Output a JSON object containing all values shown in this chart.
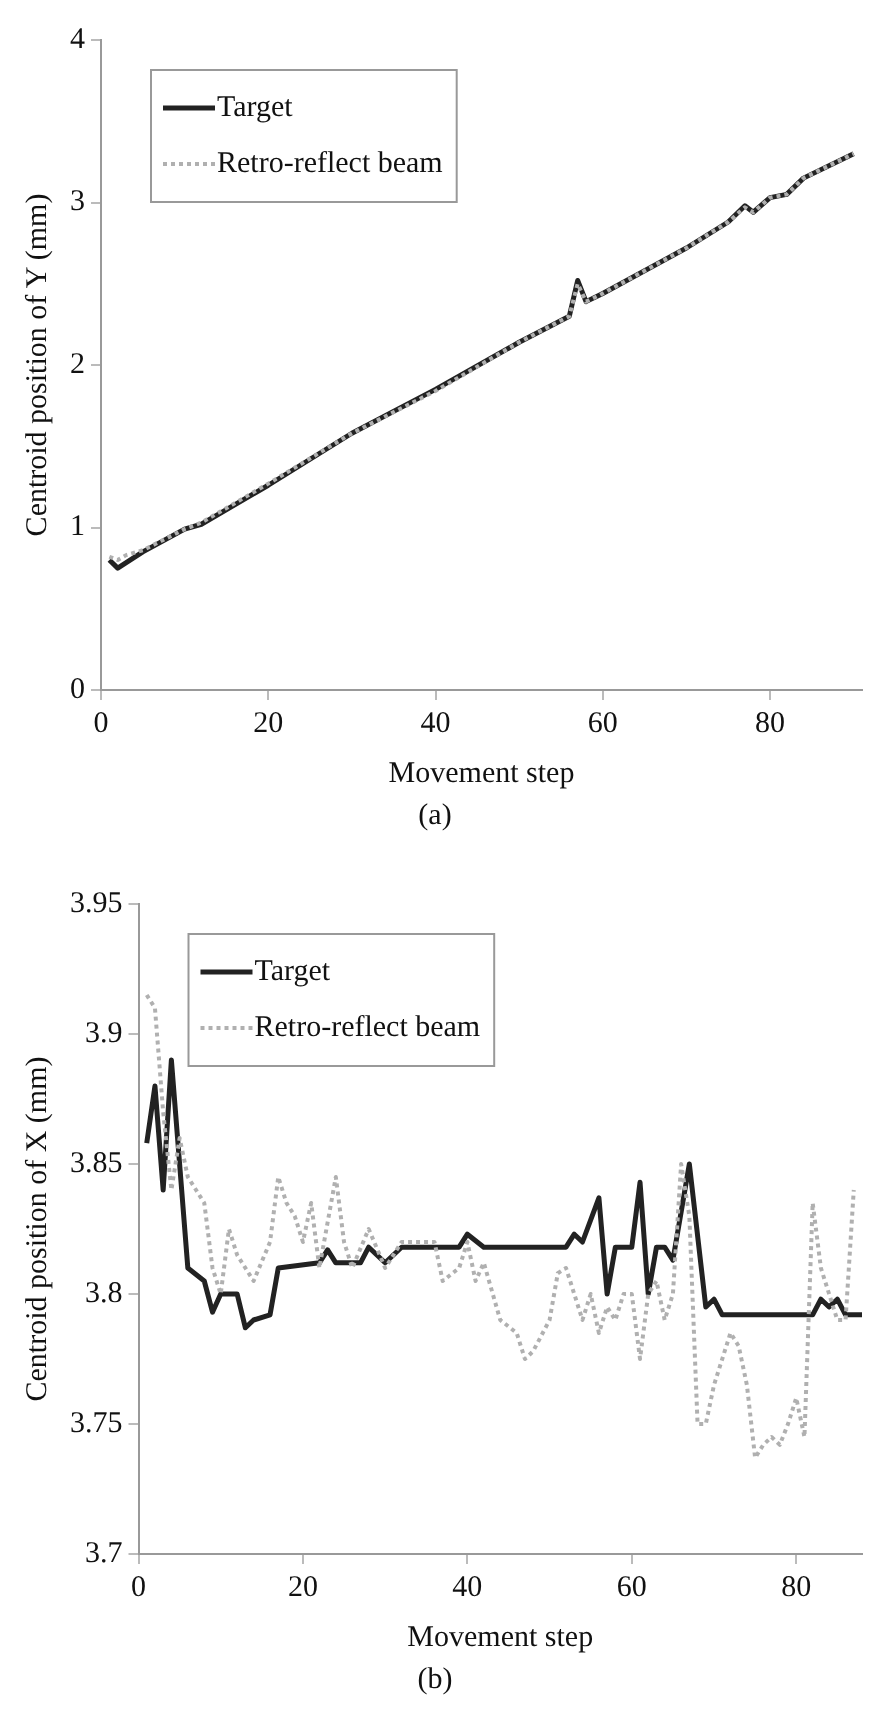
{
  "chart_data": [
    {
      "type": "line",
      "xlabel": "Movement step",
      "ylabel": "Centroid position of Y (mm)",
      "annotations": [
        "(a)"
      ],
      "xlim": [
        0,
        91
      ],
      "ylim": [
        0,
        4
      ],
      "xticks": [
        0,
        20,
        40,
        60,
        80
      ],
      "yticks": [
        0,
        1,
        2,
        3,
        4
      ],
      "legend": "top left",
      "grid": false,
      "series": [
        {
          "name": "Target",
          "color": "#222222",
          "line_style": "solid",
          "x": [
            1,
            2,
            5,
            10,
            12,
            20,
            30,
            40,
            50,
            56,
            57,
            58,
            60,
            70,
            75,
            77,
            78,
            80,
            82,
            84,
            90
          ],
          "values": [
            0.8,
            0.75,
            0.85,
            0.99,
            1.02,
            1.26,
            1.58,
            1.85,
            2.14,
            2.3,
            2.52,
            2.39,
            2.44,
            2.72,
            2.88,
            2.98,
            2.94,
            3.03,
            3.05,
            3.15,
            3.3
          ]
        },
        {
          "name": "Retro-reflect beam",
          "color": "#b0b0b0",
          "line_style": "dotted",
          "x": [
            1,
            2,
            3,
            5,
            10,
            12,
            20,
            30,
            40,
            50,
            56,
            57,
            58,
            60,
            70,
            75,
            77,
            78,
            80,
            82,
            84,
            90
          ],
          "values": [
            0.82,
            0.8,
            0.83,
            0.86,
            0.99,
            1.03,
            1.27,
            1.58,
            1.84,
            2.14,
            2.3,
            2.5,
            2.39,
            2.44,
            2.72,
            2.88,
            2.97,
            2.94,
            3.03,
            3.05,
            3.15,
            3.3
          ]
        }
      ]
    },
    {
      "type": "line",
      "xlabel": "Movement step",
      "ylabel": "Centroid position of X (mm)",
      "annotations": [
        "(b)"
      ],
      "xlim": [
        0,
        88
      ],
      "ylim": [
        3.7,
        3.95
      ],
      "xticks": [
        0,
        20,
        40,
        60,
        80
      ],
      "yticks": [
        3.7,
        3.75,
        3.8,
        3.85,
        3.9,
        3.95
      ],
      "legend": "top left",
      "grid": false,
      "series": [
        {
          "name": "Target",
          "color": "#222222",
          "line_style": "solid",
          "x": [
            1,
            2,
            3,
            4,
            5,
            6,
            8,
            9,
            10,
            12,
            13,
            14,
            16,
            17,
            22,
            23,
            24,
            27,
            28,
            30,
            32,
            39,
            40,
            42,
            52,
            53,
            54,
            56,
            57,
            58,
            60,
            61,
            62,
            63,
            64,
            65,
            67,
            69,
            70,
            71,
            82,
            83,
            84,
            85,
            86,
            88
          ],
          "values": [
            3.858,
            3.88,
            3.84,
            3.89,
            3.85,
            3.81,
            3.805,
            3.793,
            3.8,
            3.8,
            3.787,
            3.79,
            3.792,
            3.81,
            3.812,
            3.817,
            3.812,
            3.812,
            3.818,
            3.812,
            3.818,
            3.818,
            3.823,
            3.818,
            3.818,
            3.823,
            3.82,
            3.837,
            3.8,
            3.818,
            3.818,
            3.843,
            3.8,
            3.818,
            3.818,
            3.813,
            3.85,
            3.795,
            3.798,
            3.792,
            3.792,
            3.798,
            3.795,
            3.798,
            3.792,
            3.792
          ]
        },
        {
          "name": "Retro-reflect beam",
          "color": "#b0b0b0",
          "line_style": "dotted",
          "x": [
            1,
            2,
            3,
            4,
            5,
            6,
            7,
            8,
            9,
            10,
            11,
            12,
            14,
            16,
            17,
            18,
            19,
            20,
            21,
            22,
            24,
            25,
            26,
            28,
            30,
            32,
            34,
            36,
            37,
            39,
            40,
            41,
            42,
            44,
            46,
            47,
            48,
            50,
            51,
            52,
            53,
            54,
            55,
            56,
            57,
            58,
            59,
            60,
            61,
            62,
            63,
            64,
            65,
            66,
            67,
            68,
            69,
            70,
            72,
            73,
            74,
            75,
            76,
            77,
            78,
            79,
            80,
            81,
            82,
            83,
            84,
            85,
            86,
            87
          ],
          "values": [
            3.915,
            3.91,
            3.87,
            3.84,
            3.86,
            3.845,
            3.84,
            3.835,
            3.81,
            3.8,
            3.825,
            3.815,
            3.805,
            3.82,
            3.845,
            3.835,
            3.83,
            3.82,
            3.835,
            3.81,
            3.845,
            3.82,
            3.81,
            3.825,
            3.81,
            3.82,
            3.82,
            3.82,
            3.805,
            3.81,
            3.82,
            3.805,
            3.812,
            3.79,
            3.785,
            3.775,
            3.778,
            3.79,
            3.808,
            3.81,
            3.8,
            3.79,
            3.8,
            3.785,
            3.795,
            3.79,
            3.8,
            3.8,
            3.775,
            3.8,
            3.805,
            3.79,
            3.8,
            3.85,
            3.83,
            3.75,
            3.75,
            3.765,
            3.785,
            3.78,
            3.765,
            3.737,
            3.742,
            3.745,
            3.742,
            3.75,
            3.76,
            3.745,
            3.835,
            3.81,
            3.8,
            3.79,
            3.79,
            3.84
          ]
        }
      ]
    }
  ]
}
